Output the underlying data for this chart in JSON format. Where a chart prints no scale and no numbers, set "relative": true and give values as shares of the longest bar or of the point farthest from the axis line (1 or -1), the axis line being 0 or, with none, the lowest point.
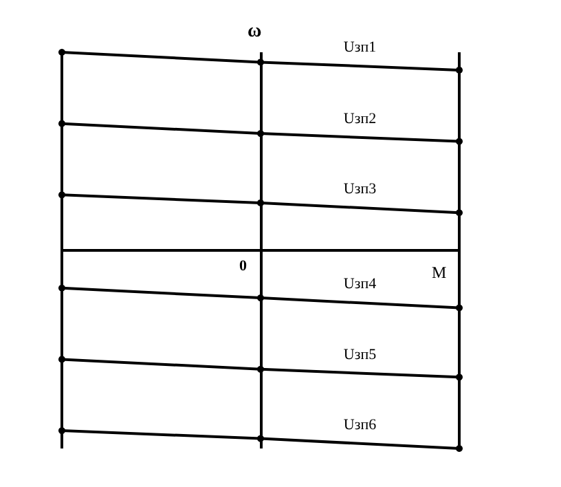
{
  "chart_data": {
    "type": "line",
    "relative": true,
    "xlabel": "M",
    "ylabel": "ω",
    "annotations": [
      "0"
    ],
    "categories": [
      null,
      null,
      null
    ],
    "grid": "x",
    "marker": "circle",
    "line_style": "solid",
    "legend": false,
    "series": [
      {
        "name": "Uзп1",
        "color": "#000000",
        "values": [
          1,
          0.95,
          0.91
        ]
      },
      {
        "name": "Uзп2",
        "color": "#000000",
        "values": [
          0.64,
          0.59,
          0.55
        ]
      },
      {
        "name": "Uзп3",
        "color": "#000000",
        "values": [
          0.28,
          0.24,
          0.19
        ]
      },
      {
        "name": "Uзп4",
        "color": "#000000",
        "values": [
          -0.19,
          -0.24,
          -0.29
        ]
      },
      {
        "name": "Uзп5",
        "color": "#000000",
        "values": [
          -0.55,
          -0.6,
          -0.64
        ]
      },
      {
        "name": "Uзп6",
        "color": "#000000",
        "values": [
          -0.91,
          -0.95,
          -1
        ]
      }
    ]
  }
}
